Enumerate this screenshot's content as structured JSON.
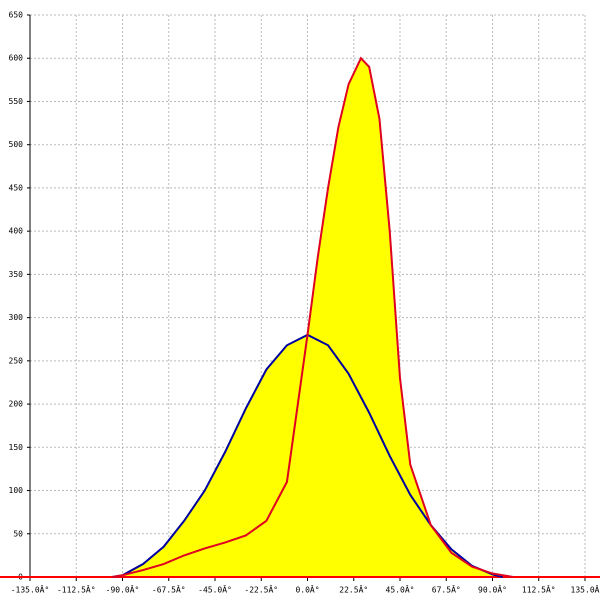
{
  "chart_data": {
    "type": "area",
    "xlim": [
      -135,
      135
    ],
    "ylim": [
      0,
      650
    ],
    "xticks": [
      {
        "value": -135,
        "label": "-135.0Â°"
      },
      {
        "value": -112.5,
        "label": "-112.5Â°"
      },
      {
        "value": -90,
        "label": "-90.0Â°"
      },
      {
        "value": -67.5,
        "label": "-67.5Â°"
      },
      {
        "value": -45,
        "label": "-45.0Â°"
      },
      {
        "value": -22.5,
        "label": "-22.5Â°"
      },
      {
        "value": 0,
        "label": "0.0Â°"
      },
      {
        "value": 22.5,
        "label": "22.5Â°"
      },
      {
        "value": 45,
        "label": "45.0Â°"
      },
      {
        "value": 67.5,
        "label": "67.5Â°"
      },
      {
        "value": 90,
        "label": "90.0Â°"
      },
      {
        "value": 112.5,
        "label": "112.5Â°"
      },
      {
        "value": 135,
        "label": "135.0Â"
      }
    ],
    "yticks": [
      0,
      50,
      100,
      150,
      200,
      250,
      300,
      350,
      400,
      450,
      500,
      550,
      600,
      650
    ],
    "grid": true,
    "fill": "#ffff00",
    "axis_color": "#ff0000",
    "series": [
      {
        "color": "#0000a0",
        "x": [
          -95,
          -90,
          -80,
          -70,
          -60,
          -50,
          -40,
          -30,
          -20,
          -10,
          0,
          10,
          20,
          30,
          40,
          50,
          60,
          70,
          80,
          90,
          95
        ],
        "values": [
          0,
          2,
          15,
          35,
          65,
          100,
          145,
          195,
          240,
          268,
          280,
          268,
          235,
          190,
          140,
          95,
          60,
          32,
          13,
          3,
          0
        ]
      },
      {
        "color": "#e00020",
        "x": [
          -95,
          -90,
          -80,
          -70,
          -60,
          -50,
          -40,
          -30,
          -20,
          -10,
          0,
          5,
          10,
          15,
          20,
          26,
          30,
          35,
          40,
          45,
          50,
          60,
          70,
          80,
          90,
          100
        ],
        "values": [
          0,
          2,
          8,
          15,
          25,
          33,
          40,
          48,
          65,
          110,
          280,
          370,
          450,
          520,
          570,
          600,
          590,
          530,
          400,
          230,
          130,
          60,
          28,
          12,
          4,
          0
        ]
      }
    ]
  }
}
